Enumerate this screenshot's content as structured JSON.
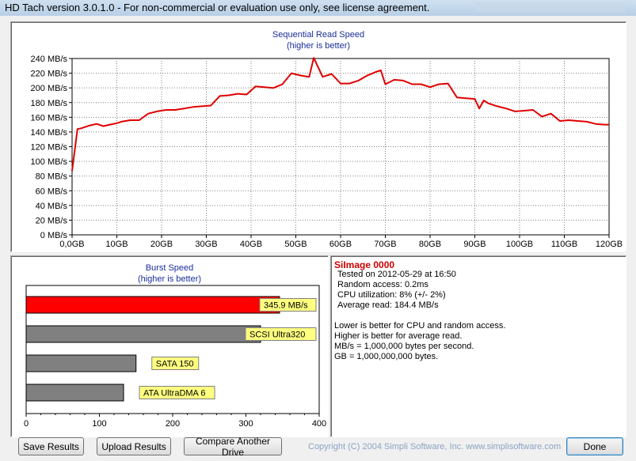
{
  "window": {
    "title": "HD Tach version 3.0.1.0  - For non-commercial or evaluation use only, see license agreement."
  },
  "sequential": {
    "title": "Sequential Read Speed",
    "subtitle": "(higher is better)"
  },
  "chart_data": [
    {
      "type": "line",
      "title": "Sequential Read Speed",
      "subtitle": "(higher is better)",
      "y_tick_labels": [
        "0 MB/s",
        "20 MB/s",
        "40 MB/s",
        "60 MB/s",
        "80 MB/s",
        "100 MB/s",
        "120 MB/s",
        "140 MB/s",
        "160 MB/s",
        "180 MB/s",
        "200 MB/s",
        "220 MB/s",
        "240 MB/s"
      ],
      "x_tick_labels": [
        "0,0GB",
        "10GB",
        "20GB",
        "30GB",
        "40GB",
        "50GB",
        "60GB",
        "70GB",
        "80GB",
        "90GB",
        "100GB",
        "110GB",
        "120GB"
      ],
      "ylim": [
        0,
        240
      ],
      "xlim": [
        0,
        120
      ],
      "grid": true,
      "color": "#e00000",
      "x": [
        0,
        1.2,
        2,
        4,
        5.5,
        7,
        8.5,
        10,
        11,
        13,
        15,
        17,
        19,
        21,
        23,
        25,
        27,
        29,
        31,
        33,
        35,
        37,
        39,
        41,
        43,
        45,
        47,
        49,
        51,
        53,
        54,
        56,
        58,
        60,
        62,
        64,
        66,
        68,
        69,
        70,
        72,
        74,
        76,
        78,
        80,
        82,
        84,
        86,
        88,
        90,
        91,
        92,
        93,
        95,
        97,
        99,
        101,
        103,
        105,
        107,
        109,
        111,
        113,
        115,
        117,
        119,
        120
      ],
      "y": [
        87,
        144,
        145,
        149,
        151,
        148,
        150,
        152,
        154,
        156,
        156,
        165,
        168,
        170,
        170,
        172,
        174,
        175,
        176,
        189,
        190,
        192,
        191,
        202,
        201,
        200,
        205,
        220,
        217,
        215,
        241,
        215,
        219,
        206,
        206,
        210,
        217,
        222,
        224,
        205,
        211,
        210,
        205,
        205,
        201,
        205,
        206,
        187,
        186,
        185,
        172,
        183,
        179,
        175,
        172,
        168,
        169,
        170,
        161,
        165,
        155,
        156,
        155,
        154,
        151,
        150,
        150
      ]
    },
    {
      "type": "bar",
      "orientation": "horizontal",
      "title": "Burst Speed",
      "subtitle": "(higher is better)",
      "categories": [
        "345.9 MB/s",
        "SCSI Ultra320",
        "SATA 150",
        "ATA UltraDMA 6"
      ],
      "values": [
        345.9,
        320,
        150,
        133
      ],
      "colors": [
        "#ff0000",
        "#808080",
        "#808080",
        "#808080"
      ],
      "x_tick_labels": [
        "0",
        "100",
        "200",
        "300",
        "400"
      ],
      "xlim": [
        0,
        400
      ]
    }
  ],
  "info": {
    "title": "SiImage 0000",
    "lines": [
      "Tested on 2012-05-29 at 16:50",
      "Random access: 0.2ms",
      "CPU utilization: 8% (+/- 2%)",
      "Average read: 184.4 MB/s"
    ],
    "notes": [
      "Lower is better for CPU and random access.",
      "Higher is better for average read.",
      "MB/s = 1,000,000 bytes per second.",
      "GB = 1,000,000,000 bytes."
    ]
  },
  "buttons": {
    "save": "Save Results",
    "upload": "Upload Results",
    "compare": "Compare Another Drive",
    "done": "Done"
  },
  "copyright": "Copyright (C) 2004 Simpli Software, Inc. www.simplisoftware.com"
}
